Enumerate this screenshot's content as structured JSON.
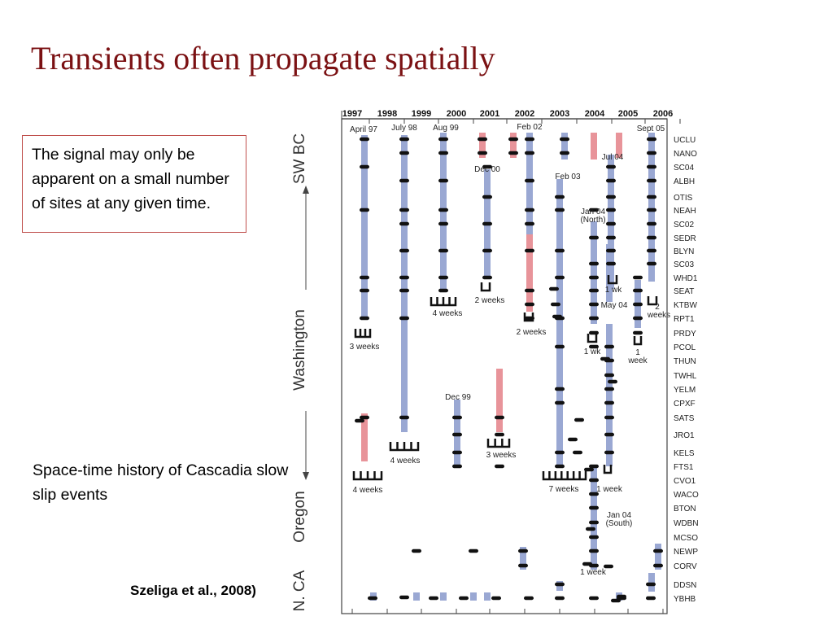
{
  "title": "Transients often propagate spatially",
  "note": "The signal may only be apparent on a small number of sites at any given time.",
  "caption": "Space-time history of Cascadia slow slip events",
  "citation": "Szeliga et al., 2008)",
  "colors": {
    "title": "#7b1113",
    "note_border": "#c0504d",
    "bar_blue": "#9aa8d3",
    "bar_red": "#e8949a"
  },
  "figure": {
    "years": [
      "1997",
      "1998",
      "1999",
      "2000",
      "2001",
      "2002",
      "2003",
      "2004",
      "2005",
      "2006"
    ],
    "stations": [
      "UCLU",
      "NANO",
      "SC04",
      "ALBH",
      "OTIS",
      "NEAH",
      "SC02",
      "SEDR",
      "BLYN",
      "SC03",
      "WHD1",
      "SEAT",
      "KTBW",
      "RPT1",
      "PRDY",
      "PCOL",
      "THUN",
      "TWHL",
      "YELM",
      "CPXF",
      "SATS",
      "JRO1",
      "KELS",
      "FTS1",
      "CVO1",
      "WACO",
      "BTON",
      "WDBN",
      "MCSO",
      "NEWP",
      "CORV",
      "DDSN",
      "YBHB"
    ],
    "regions": [
      "SW BC",
      "Washington",
      "Oregon",
      "N. CA"
    ],
    "events": [
      {
        "label": "April 97",
        "year": 1997.3,
        "duration": "3 weeks"
      },
      {
        "label": "July 98",
        "year": 1998.55,
        "duration": "4 weeks"
      },
      {
        "label": "Aug 99",
        "year": 1999.6,
        "duration": "4 weeks"
      },
      {
        "label": "Dec 99",
        "year": 1999.95,
        "duration": "3 weeks"
      },
      {
        "label": "Dec 00",
        "year": 2000.95,
        "duration": "2 weeks"
      },
      {
        "label": "Feb 02",
        "year": 2002.1,
        "duration": "2 weeks"
      },
      {
        "label": "Feb 03",
        "year": 2003.1,
        "duration": "7 weeks"
      },
      {
        "label": "Jan 04 (North)",
        "year": 2004.0,
        "duration": "1 wk"
      },
      {
        "label": "Jan 04 (South)",
        "year": 2004.0,
        "duration": "1 week"
      },
      {
        "label": "May 04",
        "year": 2004.4,
        "duration": "1 week"
      },
      {
        "label": "Jul 04",
        "year": 2004.55,
        "duration": "1 wk"
      },
      {
        "label": "Sept 05",
        "year": 2005.7,
        "duration": "2 weeks"
      }
    ],
    "extra_labels": [
      "4 weeks",
      "3 weeks",
      "1 wk",
      "1 week"
    ]
  }
}
